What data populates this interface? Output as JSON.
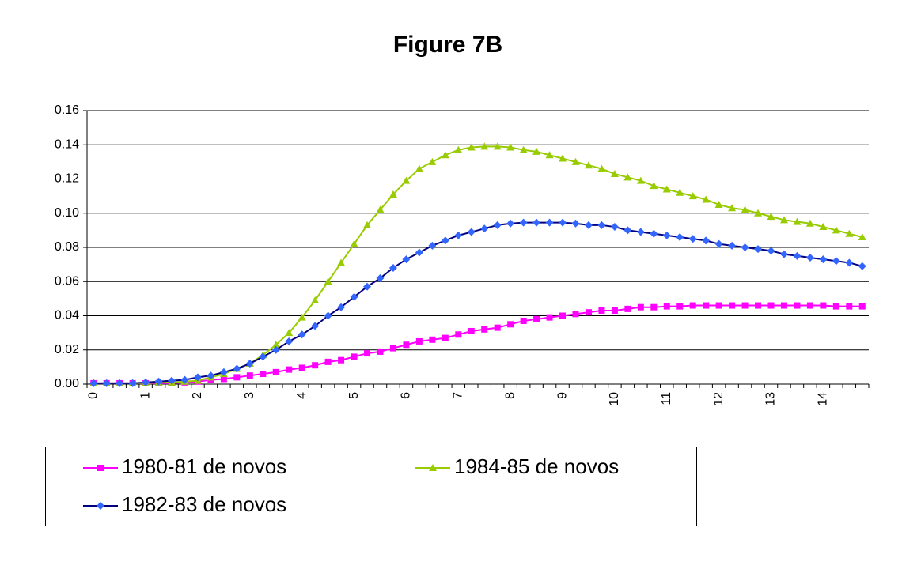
{
  "chart_data": {
    "type": "line",
    "title": "Figure 7B",
    "categories": [
      "0",
      null,
      null,
      null,
      "1",
      null,
      null,
      null,
      "2",
      null,
      null,
      null,
      "3",
      null,
      null,
      null,
      "4",
      null,
      null,
      null,
      "5",
      null,
      null,
      null,
      "6",
      null,
      null,
      null,
      "7",
      null,
      null,
      null,
      "8",
      null,
      null,
      null,
      "9",
      null,
      null,
      null,
      "10",
      null,
      null,
      null,
      "11",
      null,
      null,
      null,
      "12",
      null,
      null,
      null,
      "13",
      null,
      null,
      null,
      "14",
      null,
      null,
      null
    ],
    "series": [
      {
        "name": "1980-81 de novos",
        "color": "#ff00ff",
        "marker_color": "#ff00ff",
        "marker": "square",
        "values": [
          0.0005,
          0.0005,
          0.0005,
          0.0005,
          0.0005,
          0.0005,
          0.0005,
          0.001,
          0.0015,
          0.0025,
          0.003,
          0.004,
          0.005,
          0.006,
          0.007,
          0.0085,
          0.0095,
          0.011,
          0.013,
          0.014,
          0.016,
          0.018,
          0.019,
          0.021,
          0.023,
          0.025,
          0.026,
          0.027,
          0.029,
          0.031,
          0.032,
          0.033,
          0.035,
          0.037,
          0.038,
          0.039,
          0.04,
          0.041,
          0.042,
          0.043,
          0.043,
          0.044,
          0.045,
          0.045,
          0.0455,
          0.0455,
          0.046,
          0.046,
          0.046,
          0.046,
          0.046,
          0.046,
          0.046,
          0.046,
          0.046,
          0.046,
          0.046,
          0.0455,
          0.0455,
          0.0455
        ]
      },
      {
        "name": "1984-85 de novos",
        "color": "#99cc00",
        "marker_color": "#99cc00",
        "marker": "triangle",
        "values": [
          0.0005,
          0.0005,
          0.0005,
          0.0005,
          0.0005,
          0.001,
          0.001,
          0.0015,
          0.002,
          0.004,
          0.006,
          0.009,
          0.012,
          0.017,
          0.023,
          0.03,
          0.039,
          0.049,
          0.06,
          0.071,
          0.082,
          0.093,
          0.102,
          0.111,
          0.119,
          0.126,
          0.13,
          0.134,
          0.137,
          0.1385,
          0.139,
          0.139,
          0.1385,
          0.137,
          0.136,
          0.134,
          0.132,
          0.13,
          0.128,
          0.126,
          0.123,
          0.121,
          0.119,
          0.116,
          0.114,
          0.112,
          0.11,
          0.108,
          0.105,
          0.103,
          0.102,
          0.1,
          0.098,
          0.096,
          0.095,
          0.094,
          0.092,
          0.09,
          0.088,
          0.086
        ]
      },
      {
        "name": "1982-83 de novos",
        "color": "#000080",
        "marker_color": "#3366ff",
        "marker": "diamond",
        "values": [
          0.0005,
          0.0005,
          0.0005,
          0.0005,
          0.001,
          0.0015,
          0.002,
          0.0025,
          0.004,
          0.005,
          0.007,
          0.009,
          0.012,
          0.016,
          0.02,
          0.025,
          0.029,
          0.034,
          0.04,
          0.045,
          0.051,
          0.057,
          0.062,
          0.068,
          0.073,
          0.077,
          0.081,
          0.084,
          0.087,
          0.089,
          0.091,
          0.093,
          0.094,
          0.0945,
          0.0945,
          0.0945,
          0.0945,
          0.094,
          0.093,
          0.093,
          0.092,
          0.09,
          0.089,
          0.088,
          0.087,
          0.086,
          0.085,
          0.084,
          0.082,
          0.081,
          0.08,
          0.079,
          0.078,
          0.076,
          0.075,
          0.074,
          0.073,
          0.072,
          0.071,
          0.069
        ]
      }
    ],
    "ylim": [
      0,
      0.16
    ],
    "yticks": [
      {
        "value": 0,
        "label": "0.00"
      },
      {
        "value": 0.02,
        "label": "0.02"
      },
      {
        "value": 0.04,
        "label": "0.04"
      },
      {
        "value": 0.06,
        "label": "0.06"
      },
      {
        "value": 0.08,
        "label": "0.08"
      },
      {
        "value": 0.1,
        "label": "0.10"
      },
      {
        "value": 0.12,
        "label": "0.12"
      },
      {
        "value": 0.14,
        "label": "0.14"
      },
      {
        "value": 0.16,
        "label": "0.16"
      }
    ],
    "grid": true
  }
}
